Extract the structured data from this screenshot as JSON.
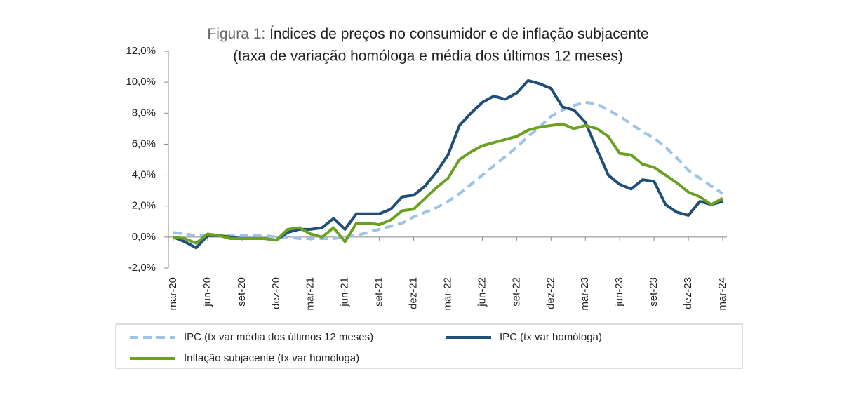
{
  "chart_data": {
    "type": "line",
    "title_label": "Figura 1:",
    "title": "Índices de preços no consumidor e de inflação subjacente",
    "subtitle": "(taxa de variação homóloga e média dos últimos 12 meses)",
    "categories": [
      "mar-20",
      null,
      null,
      "jun-20",
      null,
      null,
      "set-20",
      null,
      null,
      "dez-20",
      null,
      null,
      "mar-21",
      null,
      null,
      "jun-21",
      null,
      null,
      "set-21",
      null,
      null,
      "dez-21",
      null,
      null,
      "mar-22",
      null,
      null,
      "jun-22",
      null,
      null,
      "set-22",
      null,
      null,
      "dez-22",
      null,
      null,
      "mar-23",
      null,
      null,
      "jun-23",
      null,
      null,
      "set-23",
      null,
      null,
      "dez-23",
      null,
      null,
      "mar-24"
    ],
    "ylim": [
      -2,
      12
    ],
    "yticks": [
      {
        "value": -2,
        "label": "-2,0%"
      },
      {
        "value": 0,
        "label": "0,0%"
      },
      {
        "value": 2,
        "label": "2,0%"
      },
      {
        "value": 4,
        "label": "4,0%"
      },
      {
        "value": 6,
        "label": "6,0%"
      },
      {
        "value": 8,
        "label": "8,0%"
      },
      {
        "value": 10,
        "label": "10,0%"
      },
      {
        "value": 12,
        "label": "12,0%"
      }
    ],
    "grid": false,
    "series": [
      {
        "name": "IPC (tx var média dos últimos 12 meses)",
        "color": "#9dc3e6",
        "dashed": true,
        "values": [
          0.3,
          0.2,
          0.1,
          0.1,
          0.1,
          0.1,
          0.1,
          0.1,
          0.1,
          0.0,
          0.0,
          -0.1,
          -0.1,
          -0.1,
          -0.1,
          0.0,
          0.1,
          0.3,
          0.5,
          0.7,
          0.9,
          1.3,
          1.6,
          1.9,
          2.3,
          2.8,
          3.4,
          4.0,
          4.6,
          5.2,
          5.8,
          6.5,
          7.1,
          7.8,
          8.2,
          8.5,
          8.7,
          8.6,
          8.2,
          7.8,
          7.3,
          6.8,
          6.4,
          5.8,
          5.1,
          4.3,
          3.8,
          3.3,
          2.8
        ]
      },
      {
        "name": "IPC (tx var homóloga)",
        "color": "#1f4e79",
        "dashed": false,
        "values": [
          0.0,
          -0.3,
          -0.7,
          0.1,
          0.1,
          0.0,
          -0.1,
          -0.1,
          -0.1,
          -0.2,
          0.3,
          0.5,
          0.5,
          0.6,
          1.2,
          0.5,
          1.5,
          1.5,
          1.5,
          1.8,
          2.6,
          2.7,
          3.3,
          4.2,
          5.3,
          7.2,
          8.0,
          8.7,
          9.1,
          8.9,
          9.3,
          10.1,
          9.9,
          9.6,
          8.4,
          8.2,
          7.4,
          5.7,
          4.0,
          3.4,
          3.1,
          3.7,
          3.6,
          2.1,
          1.6,
          1.4,
          2.3,
          2.1,
          2.3
        ]
      },
      {
        "name": "Inflação subjacente (tx var homóloga)",
        "color": "#6aa121",
        "dashed": false,
        "values": [
          0.0,
          -0.1,
          -0.4,
          0.2,
          0.1,
          -0.1,
          -0.1,
          -0.1,
          -0.1,
          -0.2,
          0.5,
          0.6,
          0.2,
          0.0,
          0.6,
          -0.3,
          0.9,
          0.9,
          0.8,
          1.1,
          1.7,
          1.8,
          2.5,
          3.2,
          3.8,
          5.0,
          5.5,
          5.9,
          6.1,
          6.3,
          6.5,
          6.9,
          7.1,
          7.2,
          7.3,
          7.0,
          7.2,
          7.0,
          6.5,
          5.4,
          5.3,
          4.7,
          4.5,
          4.0,
          3.5,
          2.9,
          2.6,
          2.1,
          2.5
        ]
      }
    ]
  }
}
